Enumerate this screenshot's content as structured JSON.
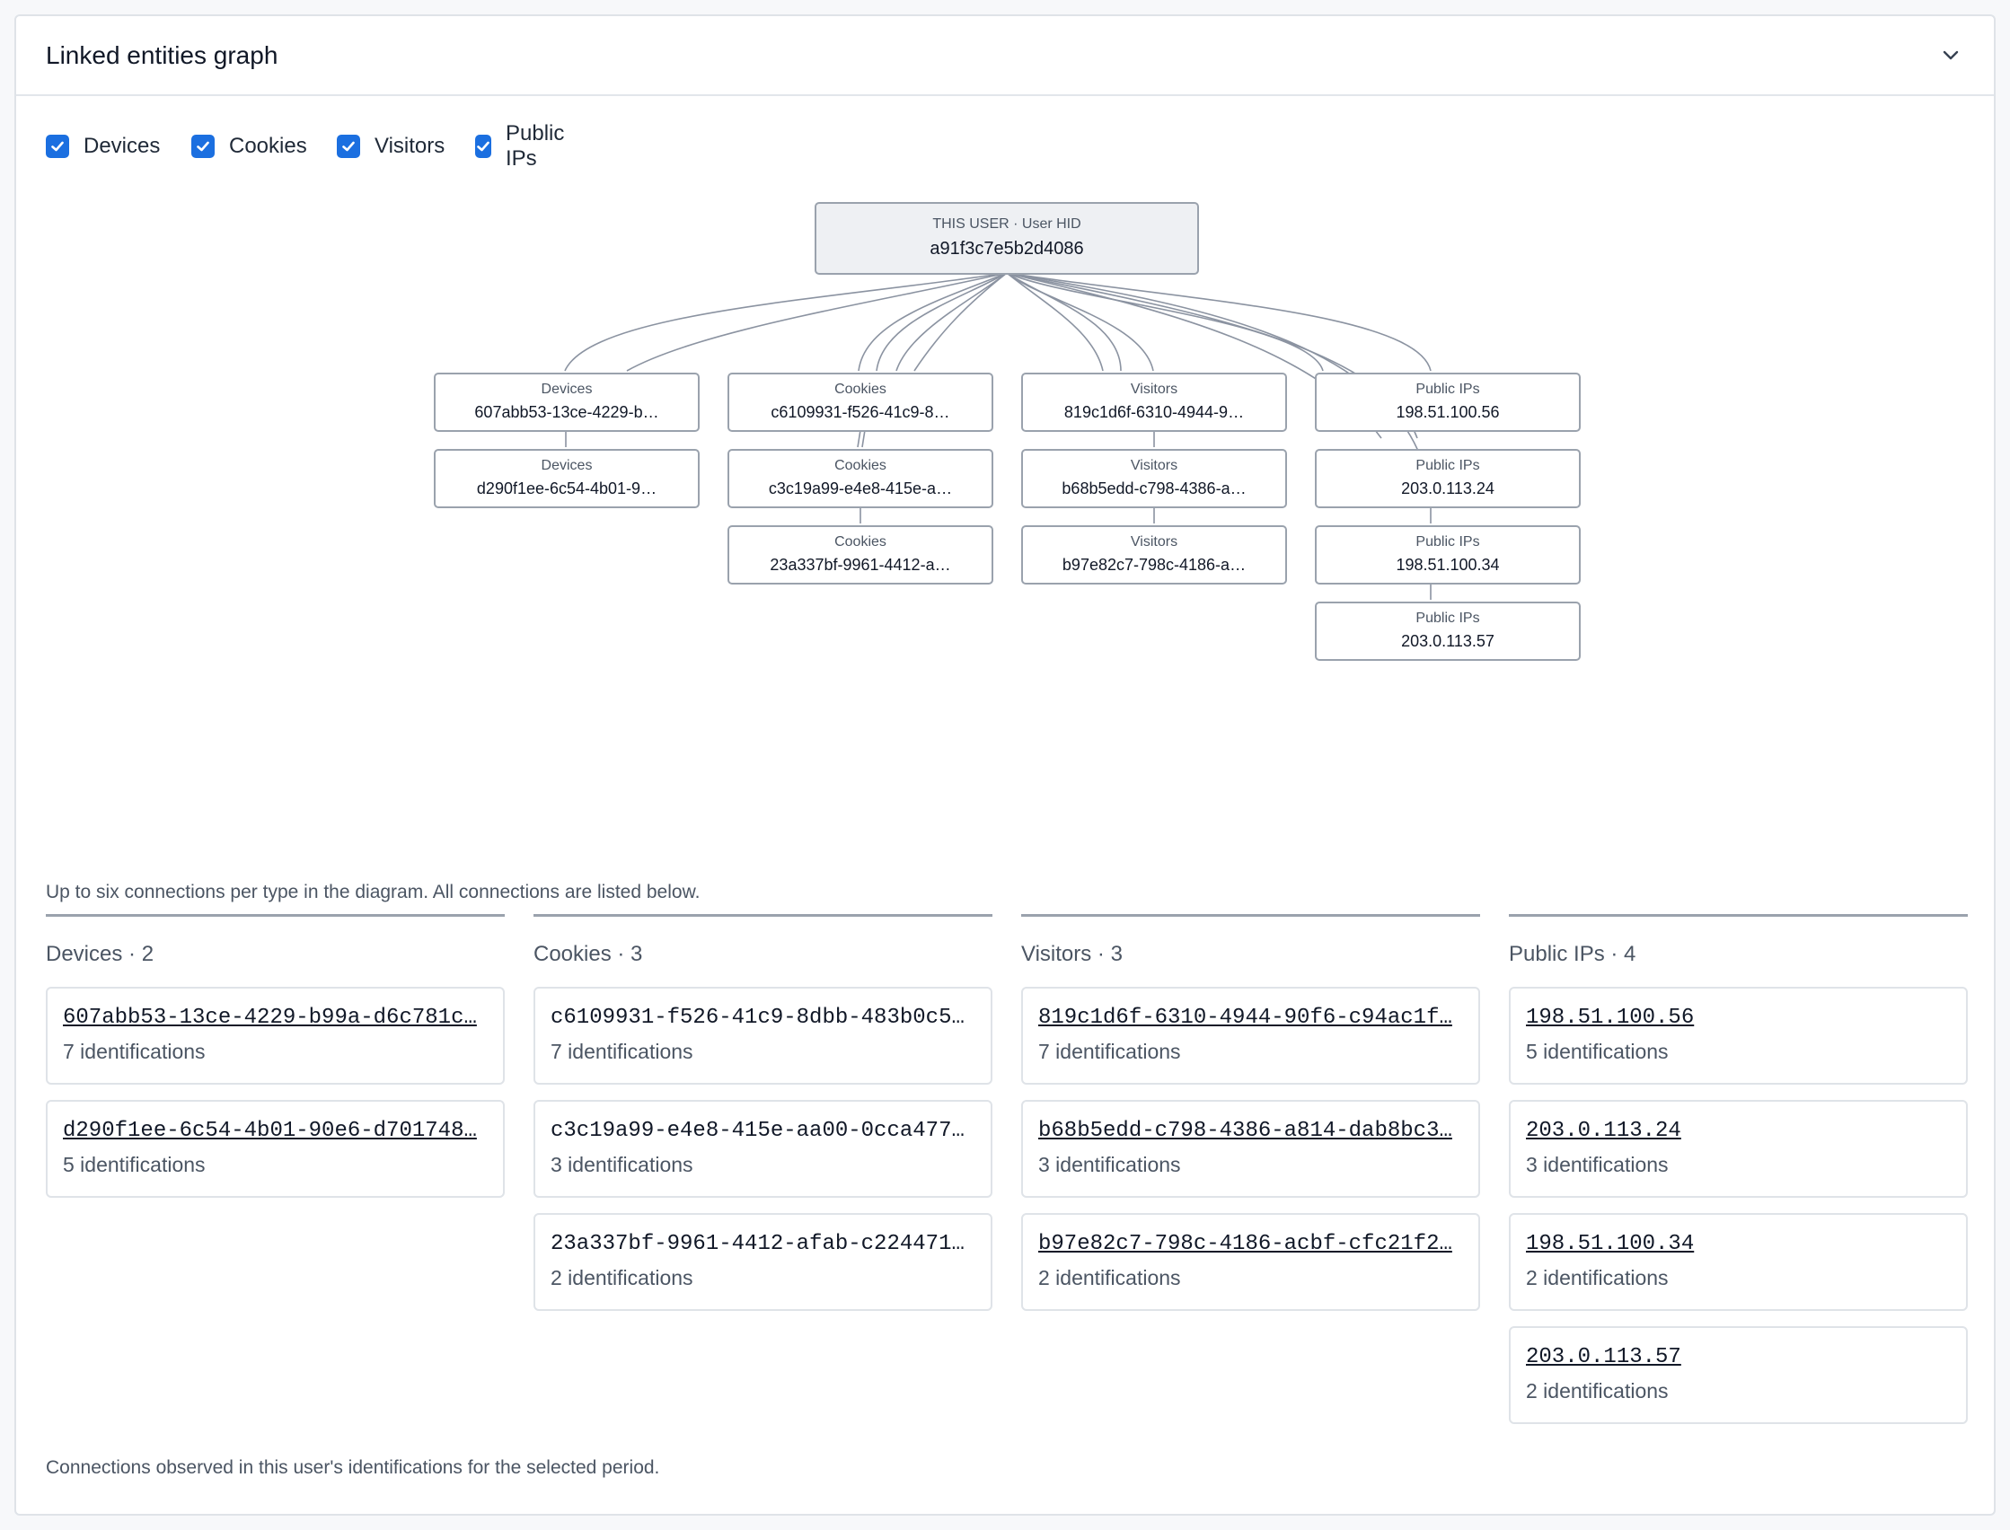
{
  "card": {
    "title": "Linked entities graph"
  },
  "filters": [
    {
      "label": "Devices",
      "checked": true
    },
    {
      "label": "Cookies",
      "checked": true
    },
    {
      "label": "Visitors",
      "checked": true
    },
    {
      "label": "Public IPs",
      "checked": true
    }
  ],
  "graph": {
    "root": {
      "title": "THIS USER · User HID",
      "value": "a91f3c7e5b2d4086"
    },
    "columns": [
      {
        "type": "Devices",
        "nodes": [
          "607abb53-13ce-4229-b…",
          "d290f1ee-6c54-4b01-9…"
        ]
      },
      {
        "type": "Cookies",
        "nodes": [
          "c6109931-f526-41c9-8…",
          "c3c19a99-e4e8-415e-a…",
          "23a337bf-9961-4412-a…"
        ]
      },
      {
        "type": "Visitors",
        "nodes": [
          "819c1d6f-6310-4944-9…",
          "b68b5edd-c798-4386-a…",
          "b97e82c7-798c-4186-a…"
        ]
      },
      {
        "type": "Public IPs",
        "nodes": [
          "198.51.100.56",
          "203.0.113.24",
          "198.51.100.34",
          "203.0.113.57"
        ]
      }
    ]
  },
  "note": "Up to six connections per type in the diagram. All connections are listed below.",
  "lists": [
    {
      "title": "Devices · 2",
      "items": [
        {
          "id": "607abb53-13ce-4229-b99a-d6c781c…",
          "count": "7 identifications",
          "link": true
        },
        {
          "id": "d290f1ee-6c54-4b01-90e6-d701748…",
          "count": "5 identifications",
          "link": true
        }
      ]
    },
    {
      "title": "Cookies · 3",
      "items": [
        {
          "id": "c6109931-f526-41c9-8dbb-483b0c5…",
          "count": "7 identifications",
          "link": false
        },
        {
          "id": "c3c19a99-e4e8-415e-aa00-0cca477…",
          "count": "3 identifications",
          "link": false
        },
        {
          "id": "23a337bf-9961-4412-afab-c224471…",
          "count": "2 identifications",
          "link": false
        }
      ]
    },
    {
      "title": "Visitors · 3",
      "items": [
        {
          "id": "819c1d6f-6310-4944-90f6-c94ac1f…",
          "count": "7 identifications",
          "link": true
        },
        {
          "id": "b68b5edd-c798-4386-a814-dab8bc3…",
          "count": "3 identifications",
          "link": true
        },
        {
          "id": "b97e82c7-798c-4186-acbf-cfc21f2…",
          "count": "2 identifications",
          "link": true
        }
      ]
    },
    {
      "title": "Public IPs · 4",
      "items": [
        {
          "id": "198.51.100.56",
          "count": "5 identifications",
          "link": true
        },
        {
          "id": "203.0.113.24",
          "count": "3 identifications",
          "link": true
        },
        {
          "id": "198.51.100.34",
          "count": "2 identifications",
          "link": true
        },
        {
          "id": "203.0.113.57",
          "count": "2 identifications",
          "link": true
        }
      ]
    }
  ],
  "footer_note": "Connections observed in this user's identifications for the selected period.",
  "colors": {
    "accent": "#1b6fe0",
    "edge": "#8b93a1",
    "node_border": "#9aa2ad",
    "root_bg": "#eef0f3"
  }
}
